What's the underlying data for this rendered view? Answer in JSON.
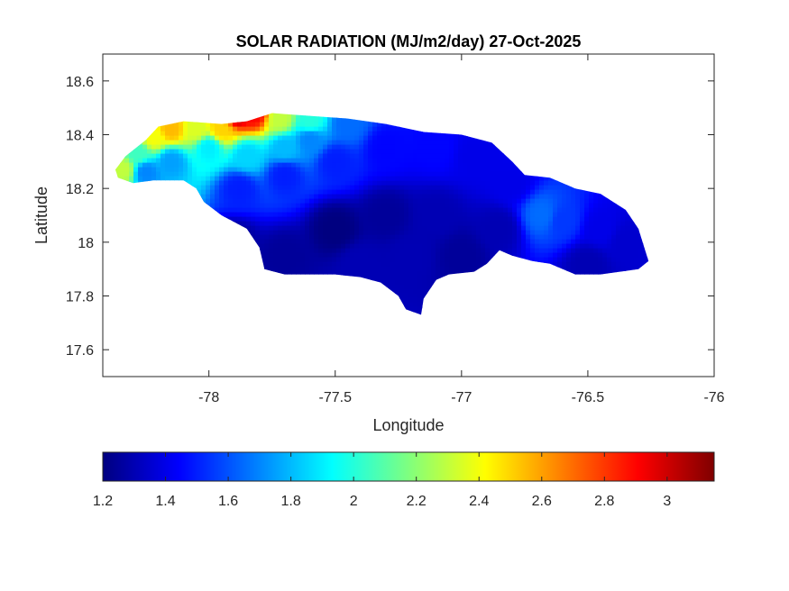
{
  "chart_data": {
    "type": "heatmap",
    "title": "SOLAR RADIATION (MJ/m2/day) 27-Oct-2025",
    "xlabel": "Longitude",
    "ylabel": "Latitude",
    "xlim": [
      -78.42,
      -76
    ],
    "ylim": [
      17.5,
      18.7
    ],
    "x_ticks": [
      -78,
      -77.5,
      -77,
      -76.5,
      -76
    ],
    "x_tick_labels": [
      "-78",
      "-77.5",
      "-77",
      "-76.5",
      "-76"
    ],
    "y_ticks": [
      17.6,
      17.8,
      18,
      18.2,
      18.4,
      18.6
    ],
    "y_tick_labels": [
      "17.6",
      "17.8",
      "18",
      "18.2",
      "18.4",
      "18.6"
    ],
    "colormap": "jet",
    "colorbar": {
      "placement": "bottom",
      "range": [
        1.2,
        3.15
      ],
      "ticks": [
        1.2,
        1.4,
        1.6,
        1.8,
        2,
        2.2,
        2.4,
        2.6,
        2.8,
        3
      ],
      "tick_labels": [
        "1.2",
        "1.4",
        "1.6",
        "1.8",
        "2",
        "2.2",
        "2.4",
        "2.6",
        "2.8",
        "3"
      ],
      "stops": [
        "#00007f",
        "#0000ff",
        "#007fff",
        "#00ffff",
        "#7fff7f",
        "#ffff00",
        "#ff7f00",
        "#ff0000",
        "#7f0000"
      ]
    },
    "region_outline": [
      [
        -78.37,
        18.27
      ],
      [
        -78.33,
        18.32
      ],
      [
        -78.25,
        18.38
      ],
      [
        -78.2,
        18.43
      ],
      [
        -78.1,
        18.45
      ],
      [
        -77.95,
        18.44
      ],
      [
        -77.85,
        18.45
      ],
      [
        -77.75,
        18.48
      ],
      [
        -77.6,
        18.47
      ],
      [
        -77.45,
        18.46
      ],
      [
        -77.3,
        18.44
      ],
      [
        -77.15,
        18.41
      ],
      [
        -77.0,
        18.4
      ],
      [
        -76.88,
        18.37
      ],
      [
        -76.8,
        18.3
      ],
      [
        -76.75,
        18.25
      ],
      [
        -76.65,
        18.24
      ],
      [
        -76.55,
        18.2
      ],
      [
        -76.45,
        18.18
      ],
      [
        -76.35,
        18.12
      ],
      [
        -76.3,
        18.05
      ],
      [
        -76.26,
        17.93
      ],
      [
        -76.3,
        17.9
      ],
      [
        -76.45,
        17.88
      ],
      [
        -76.55,
        17.88
      ],
      [
        -76.65,
        17.92
      ],
      [
        -76.72,
        17.93
      ],
      [
        -76.8,
        17.95
      ],
      [
        -76.85,
        17.97
      ],
      [
        -76.9,
        17.92
      ],
      [
        -76.95,
        17.89
      ],
      [
        -77.05,
        17.88
      ],
      [
        -77.1,
        17.86
      ],
      [
        -77.15,
        17.79
      ],
      [
        -77.16,
        17.73
      ],
      [
        -77.22,
        17.75
      ],
      [
        -77.25,
        17.8
      ],
      [
        -77.32,
        17.85
      ],
      [
        -77.4,
        17.87
      ],
      [
        -77.5,
        17.88
      ],
      [
        -77.6,
        17.88
      ],
      [
        -77.7,
        17.88
      ],
      [
        -77.78,
        17.9
      ],
      [
        -77.8,
        17.98
      ],
      [
        -77.85,
        18.05
      ],
      [
        -77.95,
        18.1
      ],
      [
        -78.02,
        18.15
      ],
      [
        -78.05,
        18.2
      ],
      [
        -78.1,
        18.23
      ],
      [
        -78.22,
        18.23
      ],
      [
        -78.3,
        18.22
      ],
      [
        -78.36,
        18.24
      ]
    ],
    "values": [
      {
        "lon": -78.34,
        "lat": 18.27,
        "value": 2.3
      },
      {
        "lon": -78.28,
        "lat": 18.33,
        "value": 2.05
      },
      {
        "lon": -78.22,
        "lat": 18.39,
        "value": 2.4
      },
      {
        "lon": -78.15,
        "lat": 18.42,
        "value": 2.55
      },
      {
        "lon": -78.05,
        "lat": 18.42,
        "value": 2.35
      },
      {
        "lon": -77.95,
        "lat": 18.42,
        "value": 2.5
      },
      {
        "lon": -77.9,
        "lat": 18.48,
        "value": 3.1
      },
      {
        "lon": -77.82,
        "lat": 18.48,
        "value": 2.9
      },
      {
        "lon": -77.72,
        "lat": 18.46,
        "value": 2.3
      },
      {
        "lon": -77.6,
        "lat": 18.45,
        "value": 2.0
      },
      {
        "lon": -77.45,
        "lat": 18.44,
        "value": 1.65
      },
      {
        "lon": -78.25,
        "lat": 18.26,
        "value": 1.7
      },
      {
        "lon": -78.15,
        "lat": 18.3,
        "value": 1.75
      },
      {
        "lon": -78.0,
        "lat": 18.35,
        "value": 1.9
      },
      {
        "lon": -77.85,
        "lat": 18.32,
        "value": 1.85
      },
      {
        "lon": -77.7,
        "lat": 18.35,
        "value": 1.8
      },
      {
        "lon": -77.6,
        "lat": 18.38,
        "value": 1.7
      },
      {
        "lon": -77.88,
        "lat": 18.2,
        "value": 1.5
      },
      {
        "lon": -77.7,
        "lat": 18.25,
        "value": 1.5
      },
      {
        "lon": -77.5,
        "lat": 18.3,
        "value": 1.5
      },
      {
        "lon": -77.3,
        "lat": 18.35,
        "value": 1.45
      },
      {
        "lon": -77.1,
        "lat": 18.35,
        "value": 1.45
      },
      {
        "lon": -76.95,
        "lat": 18.32,
        "value": 1.4
      },
      {
        "lon": -76.8,
        "lat": 18.22,
        "value": 1.4
      },
      {
        "lon": -76.68,
        "lat": 18.1,
        "value": 1.65
      },
      {
        "lon": -76.6,
        "lat": 18.08,
        "value": 1.55
      },
      {
        "lon": -76.45,
        "lat": 18.05,
        "value": 1.4
      },
      {
        "lon": -76.35,
        "lat": 18.0,
        "value": 1.35
      },
      {
        "lon": -77.9,
        "lat": 18.0,
        "value": 1.25
      },
      {
        "lon": -77.7,
        "lat": 17.95,
        "value": 1.25
      },
      {
        "lon": -77.5,
        "lat": 18.05,
        "value": 1.2
      },
      {
        "lon": -77.3,
        "lat": 18.1,
        "value": 1.25
      },
      {
        "lon": -77.1,
        "lat": 18.1,
        "value": 1.3
      },
      {
        "lon": -77.2,
        "lat": 17.95,
        "value": 1.3
      },
      {
        "lon": -77.0,
        "lat": 17.95,
        "value": 1.25
      },
      {
        "lon": -76.85,
        "lat": 18.05,
        "value": 1.3
      },
      {
        "lon": -76.5,
        "lat": 17.92,
        "value": 1.3
      },
      {
        "lon": -77.4,
        "lat": 17.92,
        "value": 1.3
      }
    ]
  }
}
